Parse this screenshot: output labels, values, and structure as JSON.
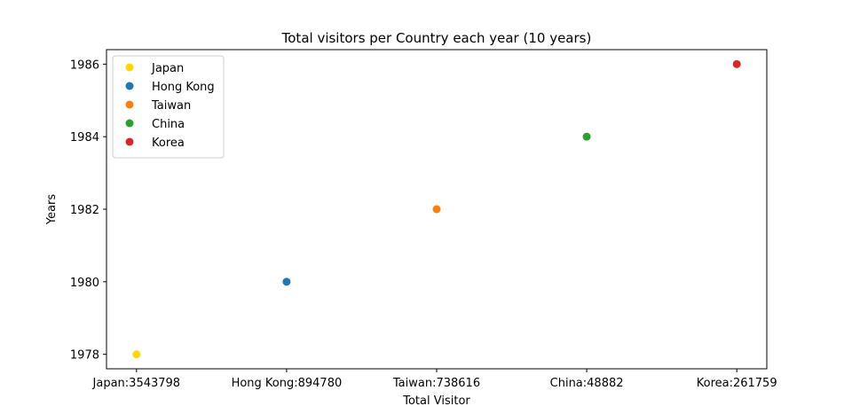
{
  "chart_data": {
    "type": "scatter",
    "title": "Total visitors per Country each year (10 years)",
    "xlabel": "Total Visitor",
    "ylabel": "Years",
    "categories": [
      "Japan:3543798",
      "Hong Kong:894780",
      "Taiwan:738616",
      "China:48882",
      "Korea:261759"
    ],
    "ylim": [
      1977.6,
      1986.4
    ],
    "yticks": [
      1978,
      1980,
      1982,
      1984,
      1986
    ],
    "grid": false,
    "legend_position": "top-left",
    "series": [
      {
        "name": "Japan",
        "color": "#ffd700",
        "points": [
          {
            "x": "Japan:3543798",
            "y": 1978
          }
        ]
      },
      {
        "name": "Hong Kong",
        "color": "#1f77b4",
        "points": [
          {
            "x": "Hong Kong:894780",
            "y": 1980
          }
        ]
      },
      {
        "name": "Taiwan",
        "color": "#ff7f0e",
        "points": [
          {
            "x": "Taiwan:738616",
            "y": 1982
          }
        ]
      },
      {
        "name": "China",
        "color": "#2ca02c",
        "points": [
          {
            "x": "China:48882",
            "y": 1984
          }
        ]
      },
      {
        "name": "Korea",
        "color": "#d62728",
        "points": [
          {
            "x": "Korea:261759",
            "y": 1986
          }
        ]
      }
    ]
  }
}
